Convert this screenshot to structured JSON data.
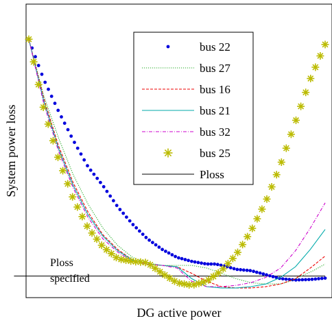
{
  "chart_data": {
    "type": "line",
    "title": "",
    "xlabel": "DG active power",
    "ylabel": "System power loss",
    "xlim": [
      0,
      100
    ],
    "ylim": [
      0,
      100
    ],
    "ticks": "none",
    "grid": false,
    "legend": "top-center",
    "series": [
      {
        "name": "bus 22",
        "style": "dots",
        "color": "#0000dd",
        "x": [
          0,
          5,
          10,
          15,
          20,
          25,
          30,
          35,
          40,
          45,
          50,
          55,
          60,
          63,
          67,
          70,
          75,
          80,
          85,
          90,
          95,
          100
        ],
        "y": [
          93,
          78,
          66,
          55,
          45,
          38,
          30,
          23.5,
          18,
          14,
          11,
          9.5,
          8.5,
          8.5,
          7.5,
          6.5,
          6,
          4.5,
          3,
          2.5,
          2.7,
          3.2
        ]
      },
      {
        "name": "bus 27",
        "style": "dotted",
        "color": "#22aa22",
        "x": [
          0,
          5,
          10,
          15,
          20,
          25,
          30,
          35,
          40,
          45,
          50,
          55,
          60,
          65,
          70,
          75,
          80,
          85,
          88,
          92,
          96,
          100
        ],
        "y": [
          93,
          72,
          56,
          42,
          31,
          22,
          15.5,
          11,
          9,
          8,
          8,
          8,
          7,
          5,
          3,
          1.5,
          1,
          1,
          2,
          4,
          6,
          8.5
        ]
      },
      {
        "name": "bus 16",
        "style": "dashed",
        "color": "#ee0000",
        "x": [
          0,
          5,
          10,
          15,
          20,
          25,
          30,
          35,
          40,
          45,
          50,
          55,
          60,
          65,
          70,
          75,
          80,
          85,
          90,
          95,
          100
        ],
        "y": [
          93,
          71,
          53,
          39,
          28,
          19.5,
          14,
          10,
          8.5,
          8,
          7.5,
          5,
          2,
          0,
          -0.5,
          -0.5,
          0,
          1,
          3,
          7,
          11.5
        ]
      },
      {
        "name": "bus 21",
        "style": "solid",
        "color": "#00aaaa",
        "x": [
          0,
          5,
          10,
          15,
          20,
          25,
          30,
          35,
          40,
          45,
          50,
          55,
          60,
          65,
          70,
          75,
          80,
          85,
          90,
          95,
          100
        ],
        "y": [
          93,
          70,
          52,
          38,
          27,
          19,
          13.5,
          10,
          8.5,
          8,
          7.5,
          3,
          0,
          -0.5,
          -0.5,
          0,
          1,
          3.5,
          7.5,
          14,
          21.5
        ]
      },
      {
        "name": "bus 32",
        "style": "dashdot",
        "color": "#cc00cc",
        "x": [
          0,
          5,
          10,
          15,
          20,
          25,
          30,
          35,
          40,
          45,
          50,
          55,
          60,
          65,
          70,
          75,
          80,
          85,
          90,
          95,
          100
        ],
        "y": [
          93,
          69,
          51,
          37,
          26,
          18,
          13,
          9.5,
          8.5,
          8,
          7,
          2,
          0,
          0,
          0.5,
          1.5,
          3.5,
          7,
          13.5,
          22,
          31.5
        ]
      },
      {
        "name": "bus 25",
        "style": "stars",
        "color": "#bbbb00",
        "x": [
          0,
          5,
          10,
          15,
          20,
          25,
          30,
          35,
          40,
          45,
          50,
          55,
          60,
          65,
          70,
          75,
          80,
          85,
          90,
          95,
          100
        ],
        "y": [
          93,
          67,
          48,
          33,
          22,
          15,
          10.5,
          9.5,
          9,
          5,
          1.5,
          0.5,
          2,
          6,
          12,
          21,
          32,
          46,
          62,
          78,
          91
        ]
      },
      {
        "name": "Ploss",
        "style": "solid",
        "color": "#000000",
        "x": [
          -5,
          100
        ],
        "y": [
          4,
          4
        ]
      }
    ],
    "annotations": [
      {
        "text": "Ploss",
        "position": "left, above Ploss line"
      },
      {
        "text": "specified",
        "position": "left, below Ploss line"
      }
    ]
  }
}
